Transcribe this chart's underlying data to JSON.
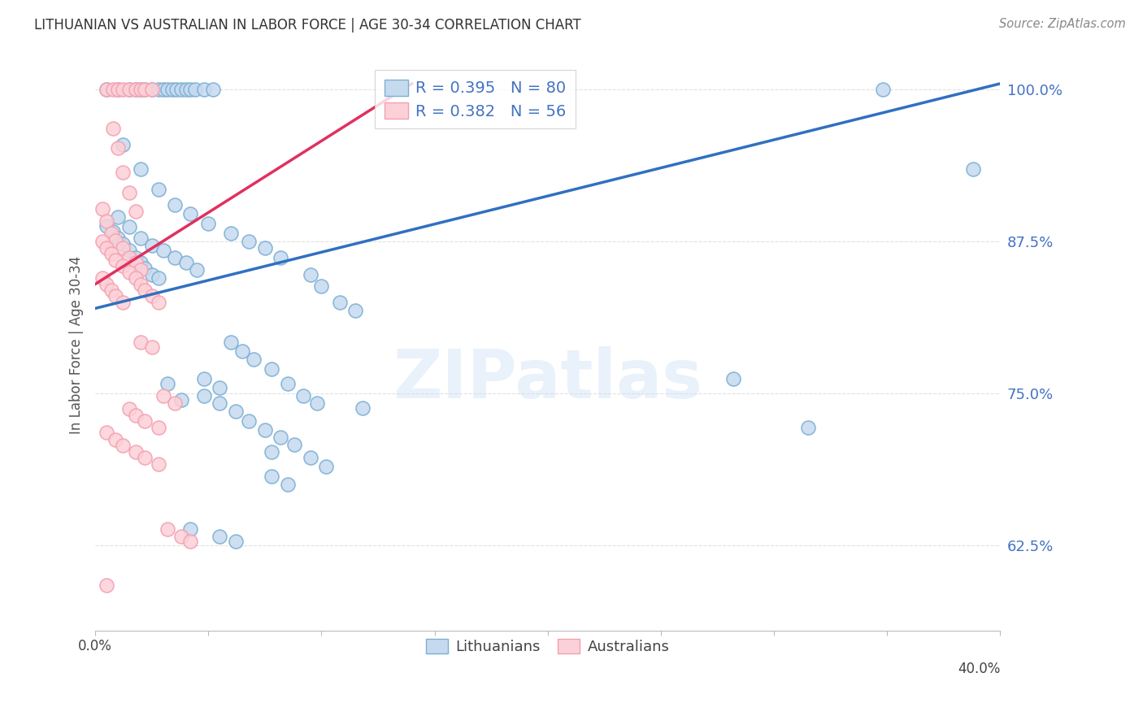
{
  "title": "LITHUANIAN VS AUSTRALIAN IN LABOR FORCE | AGE 30-34 CORRELATION CHART",
  "source": "Source: ZipAtlas.com",
  "ylabel": "In Labor Force | Age 30-34",
  "legend_blue_r": "R = 0.395",
  "legend_blue_n": "N = 80",
  "legend_pink_r": "R = 0.382",
  "legend_pink_n": "N = 56",
  "legend_blue_label": "Lithuanians",
  "legend_pink_label": "Australians",
  "blue_face_color": "#c6daef",
  "blue_edge_color": "#7bafd4",
  "pink_face_color": "#fcd0d7",
  "pink_edge_color": "#f4a0b0",
  "blue_line_color": "#3070c0",
  "pink_line_color": "#e03060",
  "blue_scatter": [
    [
      0.005,
      1.0
    ],
    [
      0.01,
      1.0
    ],
    [
      0.015,
      1.0
    ],
    [
      0.018,
      1.0
    ],
    [
      0.02,
      1.0
    ],
    [
      0.022,
      1.0
    ],
    [
      0.025,
      1.0
    ],
    [
      0.028,
      1.0
    ],
    [
      0.03,
      1.0
    ],
    [
      0.032,
      1.0
    ],
    [
      0.034,
      1.0
    ],
    [
      0.036,
      1.0
    ],
    [
      0.038,
      1.0
    ],
    [
      0.04,
      1.0
    ],
    [
      0.042,
      1.0
    ],
    [
      0.044,
      1.0
    ],
    [
      0.048,
      1.0
    ],
    [
      0.052,
      1.0
    ],
    [
      0.012,
      0.955
    ],
    [
      0.02,
      0.935
    ],
    [
      0.028,
      0.918
    ],
    [
      0.035,
      0.905
    ],
    [
      0.042,
      0.898
    ],
    [
      0.05,
      0.89
    ],
    [
      0.06,
      0.882
    ],
    [
      0.068,
      0.875
    ],
    [
      0.075,
      0.87
    ],
    [
      0.082,
      0.862
    ],
    [
      0.01,
      0.895
    ],
    [
      0.015,
      0.887
    ],
    [
      0.02,
      0.878
    ],
    [
      0.025,
      0.872
    ],
    [
      0.03,
      0.868
    ],
    [
      0.035,
      0.862
    ],
    [
      0.04,
      0.858
    ],
    [
      0.045,
      0.852
    ],
    [
      0.005,
      0.888
    ],
    [
      0.008,
      0.883
    ],
    [
      0.01,
      0.878
    ],
    [
      0.012,
      0.873
    ],
    [
      0.015,
      0.868
    ],
    [
      0.018,
      0.862
    ],
    [
      0.02,
      0.858
    ],
    [
      0.022,
      0.853
    ],
    [
      0.025,
      0.848
    ],
    [
      0.028,
      0.845
    ],
    [
      0.095,
      0.848
    ],
    [
      0.1,
      0.838
    ],
    [
      0.108,
      0.825
    ],
    [
      0.115,
      0.818
    ],
    [
      0.06,
      0.792
    ],
    [
      0.065,
      0.785
    ],
    [
      0.07,
      0.778
    ],
    [
      0.078,
      0.77
    ],
    [
      0.085,
      0.758
    ],
    [
      0.092,
      0.748
    ],
    [
      0.098,
      0.742
    ],
    [
      0.118,
      0.738
    ],
    [
      0.048,
      0.762
    ],
    [
      0.055,
      0.755
    ],
    [
      0.062,
      0.735
    ],
    [
      0.068,
      0.727
    ],
    [
      0.075,
      0.72
    ],
    [
      0.082,
      0.714
    ],
    [
      0.088,
      0.708
    ],
    [
      0.078,
      0.702
    ],
    [
      0.095,
      0.697
    ],
    [
      0.102,
      0.69
    ],
    [
      0.048,
      0.748
    ],
    [
      0.055,
      0.742
    ],
    [
      0.032,
      0.758
    ],
    [
      0.038,
      0.745
    ],
    [
      0.078,
      0.682
    ],
    [
      0.085,
      0.675
    ],
    [
      0.042,
      0.638
    ],
    [
      0.055,
      0.632
    ],
    [
      0.062,
      0.628
    ],
    [
      0.348,
      1.0
    ],
    [
      0.388,
      0.935
    ],
    [
      0.282,
      0.762
    ],
    [
      0.315,
      0.722
    ]
  ],
  "pink_scatter": [
    [
      0.005,
      1.0
    ],
    [
      0.008,
      1.0
    ],
    [
      0.01,
      1.0
    ],
    [
      0.012,
      1.0
    ],
    [
      0.015,
      1.0
    ],
    [
      0.018,
      1.0
    ],
    [
      0.02,
      1.0
    ],
    [
      0.022,
      1.0
    ],
    [
      0.025,
      1.0
    ],
    [
      0.008,
      0.968
    ],
    [
      0.01,
      0.952
    ],
    [
      0.012,
      0.932
    ],
    [
      0.015,
      0.915
    ],
    [
      0.018,
      0.9
    ],
    [
      0.003,
      0.902
    ],
    [
      0.005,
      0.892
    ],
    [
      0.007,
      0.882
    ],
    [
      0.009,
      0.876
    ],
    [
      0.012,
      0.87
    ],
    [
      0.015,
      0.862
    ],
    [
      0.018,
      0.858
    ],
    [
      0.02,
      0.852
    ],
    [
      0.003,
      0.875
    ],
    [
      0.005,
      0.87
    ],
    [
      0.007,
      0.865
    ],
    [
      0.009,
      0.86
    ],
    [
      0.012,
      0.855
    ],
    [
      0.015,
      0.85
    ],
    [
      0.018,
      0.845
    ],
    [
      0.02,
      0.84
    ],
    [
      0.022,
      0.835
    ],
    [
      0.025,
      0.83
    ],
    [
      0.028,
      0.825
    ],
    [
      0.003,
      0.845
    ],
    [
      0.005,
      0.84
    ],
    [
      0.007,
      0.835
    ],
    [
      0.009,
      0.83
    ],
    [
      0.012,
      0.825
    ],
    [
      0.02,
      0.792
    ],
    [
      0.025,
      0.788
    ],
    [
      0.03,
      0.748
    ],
    [
      0.035,
      0.742
    ],
    [
      0.015,
      0.737
    ],
    [
      0.018,
      0.732
    ],
    [
      0.022,
      0.727
    ],
    [
      0.028,
      0.722
    ],
    [
      0.005,
      0.718
    ],
    [
      0.009,
      0.712
    ],
    [
      0.012,
      0.707
    ],
    [
      0.018,
      0.702
    ],
    [
      0.022,
      0.697
    ],
    [
      0.028,
      0.692
    ],
    [
      0.032,
      0.638
    ],
    [
      0.038,
      0.632
    ],
    [
      0.042,
      0.628
    ],
    [
      0.005,
      0.592
    ]
  ],
  "xlim": [
    0.0,
    0.4
  ],
  "ylim": [
    0.555,
    1.025
  ],
  "ytick_positions": [
    0.625,
    0.75,
    0.875,
    1.0
  ],
  "ytick_labels": [
    "62.5%",
    "75.0%",
    "87.5%",
    "100.0%"
  ],
  "xtick_positions": [
    0.0,
    0.05,
    0.1,
    0.15,
    0.2,
    0.25,
    0.3,
    0.35,
    0.4
  ],
  "xtick_label_left": "0.0%",
  "xtick_label_right": "40.0%",
  "watermark_text": "ZIPatlas",
  "grid_color": "#e0e0e0",
  "background_color": "#ffffff",
  "title_color": "#333333",
  "right_tick_color": "#4472c4",
  "bottom_tick_color": "#444444",
  "axis_label_color": "#555555"
}
